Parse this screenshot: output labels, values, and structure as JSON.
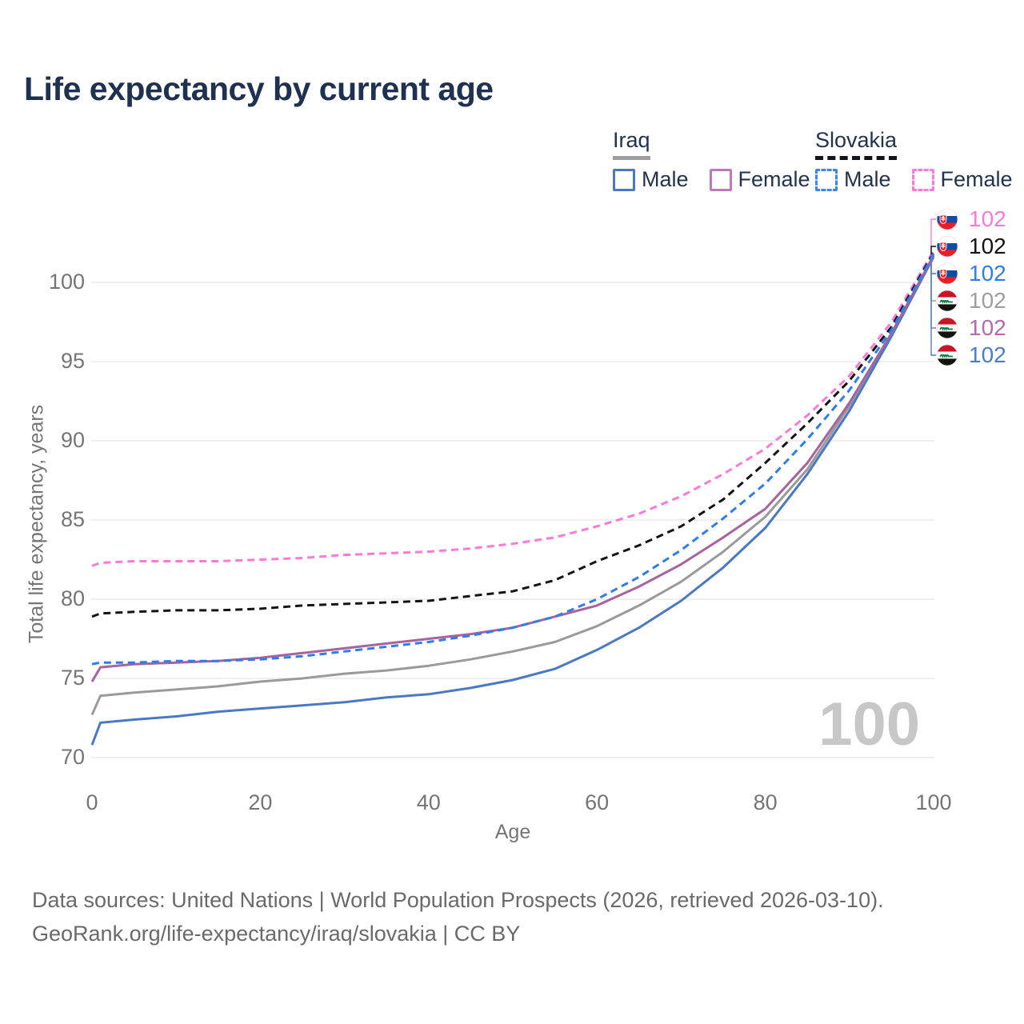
{
  "title": "Life expectancy by current age",
  "legend": {
    "groups": [
      {
        "label": "Iraq",
        "line_style": "solid",
        "underline_color": "#9e9e9e",
        "items": [
          {
            "label": "Male",
            "color": "#4a79c4",
            "dash": false
          },
          {
            "label": "Female",
            "color": "#bd79ba",
            "dash": false
          }
        ]
      },
      {
        "label": "Slovakia",
        "line_style": "dashed",
        "underline_color": "#141414",
        "items": [
          {
            "label": "Male",
            "color": "#3d85f0",
            "dash": true
          },
          {
            "label": "Female",
            "color": "#fc7ad8",
            "dash": true
          }
        ]
      }
    ]
  },
  "watermark": "100",
  "footer": {
    "line1": "Data sources: United Nations | World Population Prospects (2026, retrieved 2026-03-10).",
    "line2": "GeoRank.org/life-expectancy/iraq/slovakia | CC BY"
  },
  "chart_data": {
    "type": "line",
    "title": "Life expectancy by current age",
    "xlabel": "Age",
    "ylabel": "Total life expectancy, years",
    "xlim": [
      0,
      100
    ],
    "ylim": [
      68.5,
      103.5
    ],
    "xticks": [
      0,
      20,
      40,
      60,
      80,
      100
    ],
    "yticks": [
      70,
      75,
      80,
      85,
      90,
      95,
      100
    ],
    "grid": "horizontal",
    "legend_position": "top-right",
    "x": [
      0,
      1,
      5,
      10,
      15,
      20,
      25,
      30,
      35,
      40,
      45,
      50,
      55,
      60,
      65,
      70,
      75,
      80,
      85,
      90,
      95,
      100
    ],
    "series": [
      {
        "name": "Slovakia Female",
        "country": "Slovakia",
        "sex": "Female",
        "color": "#fb7ad6",
        "style": "dashed",
        "values": [
          82.1,
          82.3,
          82.4,
          82.4,
          82.4,
          82.5,
          82.6,
          82.8,
          82.9,
          83.0,
          83.2,
          83.5,
          83.9,
          84.6,
          85.4,
          86.5,
          87.9,
          89.5,
          91.6,
          94.1,
          97.5,
          102.0
        ]
      },
      {
        "name": "Slovakia Total",
        "country": "Slovakia",
        "sex": "Total",
        "color": "#141414",
        "style": "dashed",
        "values": [
          78.9,
          79.1,
          79.2,
          79.3,
          79.3,
          79.4,
          79.6,
          79.7,
          79.8,
          79.9,
          80.2,
          80.5,
          81.2,
          82.4,
          83.4,
          84.6,
          86.3,
          88.6,
          91.1,
          93.8,
          97.2,
          101.9
        ]
      },
      {
        "name": "Iraq Total",
        "country": "Iraq",
        "sex": "Total",
        "color": "#9a9a9a",
        "style": "solid",
        "values": [
          72.7,
          73.9,
          74.1,
          74.3,
          74.5,
          74.8,
          75.0,
          75.3,
          75.5,
          75.8,
          76.2,
          76.7,
          77.3,
          78.3,
          79.6,
          81.1,
          83.0,
          85.2,
          88.2,
          92.2,
          96.7,
          101.7
        ]
      },
      {
        "name": "Iraq Male",
        "country": "Iraq",
        "sex": "Male",
        "color": "#4a79c4",
        "style": "solid",
        "values": [
          70.8,
          72.2,
          72.4,
          72.6,
          72.9,
          73.1,
          73.3,
          73.5,
          73.8,
          74.0,
          74.4,
          74.9,
          75.6,
          76.8,
          78.2,
          79.9,
          82.0,
          84.5,
          87.9,
          91.9,
          96.6,
          101.6
        ]
      },
      {
        "name": "Iraq Female",
        "country": "Iraq",
        "sex": "Female",
        "color": "#a763a0",
        "style": "solid",
        "values": [
          74.8,
          75.7,
          75.9,
          76.0,
          76.1,
          76.3,
          76.6,
          76.9,
          77.2,
          77.5,
          77.8,
          78.2,
          78.9,
          79.6,
          80.8,
          82.2,
          83.9,
          85.7,
          88.6,
          92.4,
          96.8,
          101.7
        ]
      },
      {
        "name": "Slovakia Male",
        "country": "Slovakia",
        "sex": "Male",
        "color": "#2e7de9",
        "style": "dashed",
        "values": [
          75.9,
          76.0,
          76.0,
          76.1,
          76.1,
          76.2,
          76.4,
          76.7,
          77.0,
          77.3,
          77.7,
          78.2,
          78.9,
          80.0,
          81.4,
          83.1,
          85.1,
          87.3,
          90.1,
          93.2,
          97.0,
          101.8
        ]
      }
    ],
    "end_labels": [
      {
        "series": "Slovakia Female",
        "flag": "slovakia",
        "value": "102",
        "color": "#fb7ad6"
      },
      {
        "series": "Slovakia Total",
        "flag": "slovakia",
        "value": "102",
        "color": "#141414"
      },
      {
        "series": "Slovakia Male",
        "flag": "slovakia",
        "value": "102",
        "color": "#2e7de9"
      },
      {
        "series": "Iraq Total",
        "flag": "iraq",
        "value": "102",
        "color": "#9e9e9e"
      },
      {
        "series": "Iraq Female",
        "flag": "iraq",
        "value": "102",
        "color": "#b36ab0"
      },
      {
        "series": "Iraq Male",
        "flag": "iraq",
        "value": "102",
        "color": "#4a7ccd"
      }
    ]
  }
}
